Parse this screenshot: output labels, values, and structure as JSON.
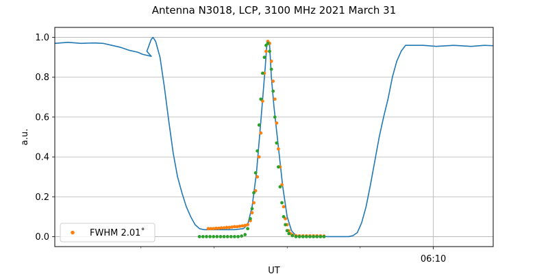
{
  "chart_data": {
    "type": "line",
    "title": "Antenna N3018, LCP, 3100 MHz 2021 March 31",
    "xlabel": "UT",
    "ylabel": "a.u.",
    "xlim": [
      5.735,
      6.235
    ],
    "ylim": [
      -0.05,
      1.05
    ],
    "x_major_ticks": [
      {
        "value": 6.1667,
        "label": "06:10"
      }
    ],
    "x_minor_ticks": [
      5.8333,
      5.9167,
      6.0,
      6.0833,
      6.25
    ],
    "y_ticks": [
      0.0,
      0.2,
      0.4,
      0.6,
      0.8,
      1.0
    ],
    "y_tick_labels": [
      "0.0",
      "0.2",
      "0.4",
      "0.6",
      "0.8",
      "1.0"
    ],
    "grid": true,
    "legend_position": "lower-left",
    "series": [
      {
        "kind": "line",
        "color": "#1f77b4",
        "points": [
          [
            5.735,
            0.97
          ],
          [
            5.75,
            0.975
          ],
          [
            5.765,
            0.97
          ],
          [
            5.78,
            0.972
          ],
          [
            5.79,
            0.97
          ],
          [
            5.8,
            0.96
          ],
          [
            5.81,
            0.95
          ],
          [
            5.82,
            0.935
          ],
          [
            5.83,
            0.925
          ],
          [
            5.835,
            0.915
          ],
          [
            5.84,
            0.91
          ],
          [
            5.845,
            0.905
          ],
          [
            5.84,
            0.93
          ],
          [
            5.845,
            0.99
          ],
          [
            5.847,
            1.0
          ],
          [
            5.85,
            0.98
          ],
          [
            5.855,
            0.9
          ],
          [
            5.86,
            0.75
          ],
          [
            5.865,
            0.58
          ],
          [
            5.87,
            0.42
          ],
          [
            5.875,
            0.3
          ],
          [
            5.88,
            0.22
          ],
          [
            5.885,
            0.15
          ],
          [
            5.89,
            0.1
          ],
          [
            5.895,
            0.06
          ],
          [
            5.9,
            0.04
          ],
          [
            5.905,
            0.035
          ],
          [
            5.92,
            0.035
          ],
          [
            5.94,
            0.035
          ],
          [
            5.95,
            0.04
          ],
          [
            5.955,
            0.06
          ],
          [
            5.96,
            0.15
          ],
          [
            5.965,
            0.32
          ],
          [
            5.97,
            0.58
          ],
          [
            5.975,
            0.85
          ],
          [
            5.977,
            0.975
          ],
          [
            5.98,
            0.96
          ],
          [
            5.982,
            0.8
          ],
          [
            5.985,
            0.65
          ],
          [
            5.99,
            0.45
          ],
          [
            5.995,
            0.25
          ],
          [
            6.0,
            0.1
          ],
          [
            6.005,
            0.03
          ],
          [
            6.01,
            0.005
          ],
          [
            6.02,
            0.0
          ],
          [
            6.04,
            0.0
          ],
          [
            6.06,
            0.0
          ],
          [
            6.07,
            0.0
          ],
          [
            6.075,
            0.005
          ],
          [
            6.08,
            0.02
          ],
          [
            6.085,
            0.07
          ],
          [
            6.09,
            0.15
          ],
          [
            6.095,
            0.26
          ],
          [
            6.1,
            0.38
          ],
          [
            6.105,
            0.5
          ],
          [
            6.11,
            0.6
          ],
          [
            6.115,
            0.69
          ],
          [
            6.12,
            0.8
          ],
          [
            6.125,
            0.88
          ],
          [
            6.13,
            0.93
          ],
          [
            6.135,
            0.96
          ],
          [
            6.14,
            0.96
          ],
          [
            6.155,
            0.96
          ],
          [
            6.17,
            0.955
          ],
          [
            6.19,
            0.96
          ],
          [
            6.21,
            0.955
          ],
          [
            6.225,
            0.96
          ],
          [
            6.235,
            0.958
          ]
        ]
      },
      {
        "kind": "scatter",
        "name": "FWHM 2.01$^\\circ$",
        "label": "FWHM 2.01˚",
        "color": "#ff7f0e",
        "points": [
          [
            5.91,
            0.04
          ],
          [
            5.913,
            0.04
          ],
          [
            5.916,
            0.04
          ],
          [
            5.919,
            0.042
          ],
          [
            5.922,
            0.042
          ],
          [
            5.925,
            0.044
          ],
          [
            5.928,
            0.044
          ],
          [
            5.931,
            0.046
          ],
          [
            5.934,
            0.046
          ],
          [
            5.937,
            0.048
          ],
          [
            5.94,
            0.05
          ],
          [
            5.943,
            0.05
          ],
          [
            5.946,
            0.052
          ],
          [
            5.949,
            0.054
          ],
          [
            5.952,
            0.056
          ],
          [
            5.955,
            0.06
          ],
          [
            5.958,
            0.08
          ],
          [
            5.96,
            0.12
          ],
          [
            5.962,
            0.17
          ],
          [
            5.964,
            0.23
          ],
          [
            5.966,
            0.3
          ],
          [
            5.968,
            0.4
          ],
          [
            5.97,
            0.52
          ],
          [
            5.972,
            0.68
          ],
          [
            5.974,
            0.82
          ],
          [
            5.976,
            0.93
          ],
          [
            5.978,
            0.98
          ],
          [
            5.98,
            0.97
          ],
          [
            5.982,
            0.88
          ],
          [
            5.984,
            0.78
          ],
          [
            5.986,
            0.69
          ],
          [
            5.988,
            0.57
          ],
          [
            5.99,
            0.44
          ],
          [
            5.992,
            0.35
          ],
          [
            5.994,
            0.26
          ],
          [
            5.996,
            0.15
          ],
          [
            5.998,
            0.09
          ],
          [
            6.0,
            0.06
          ],
          [
            6.002,
            0.03
          ],
          [
            6.004,
            0.015
          ],
          [
            6.006,
            0.008
          ],
          [
            6.01,
            0.005
          ],
          [
            6.014,
            0.004
          ],
          [
            6.018,
            0.004
          ],
          [
            6.022,
            0.004
          ],
          [
            6.026,
            0.004
          ],
          [
            6.03,
            0.004
          ],
          [
            6.034,
            0.004
          ],
          [
            6.038,
            0.004
          ],
          [
            6.042,
            0.003
          ]
        ]
      },
      {
        "kind": "scatter",
        "color": "#2ca02c",
        "points": [
          [
            5.9,
            0.0
          ],
          [
            5.904,
            0.0
          ],
          [
            5.908,
            0.0
          ],
          [
            5.912,
            0.0
          ],
          [
            5.916,
            0.0
          ],
          [
            5.92,
            0.0
          ],
          [
            5.924,
            0.0
          ],
          [
            5.928,
            0.0
          ],
          [
            5.932,
            0.0
          ],
          [
            5.936,
            0.0
          ],
          [
            5.94,
            0.0
          ],
          [
            5.944,
            0.0
          ],
          [
            5.948,
            0.003
          ],
          [
            5.952,
            0.01
          ],
          [
            5.955,
            0.04
          ],
          [
            5.958,
            0.09
          ],
          [
            5.96,
            0.14
          ],
          [
            5.962,
            0.22
          ],
          [
            5.964,
            0.32
          ],
          [
            5.966,
            0.43
          ],
          [
            5.968,
            0.56
          ],
          [
            5.97,
            0.69
          ],
          [
            5.972,
            0.82
          ],
          [
            5.974,
            0.9
          ],
          [
            5.976,
            0.96
          ],
          [
            5.978,
            0.97
          ],
          [
            5.98,
            0.93
          ],
          [
            5.982,
            0.84
          ],
          [
            5.984,
            0.73
          ],
          [
            5.986,
            0.6
          ],
          [
            5.988,
            0.47
          ],
          [
            5.99,
            0.35
          ],
          [
            5.992,
            0.25
          ],
          [
            5.994,
            0.17
          ],
          [
            5.996,
            0.1
          ],
          [
            5.998,
            0.06
          ],
          [
            6.0,
            0.03
          ],
          [
            6.002,
            0.015
          ],
          [
            6.006,
            0.005
          ],
          [
            6.01,
            0.0
          ],
          [
            6.014,
            0.0
          ],
          [
            6.018,
            0.0
          ],
          [
            6.022,
            0.0
          ],
          [
            6.026,
            0.0
          ],
          [
            6.03,
            0.0
          ],
          [
            6.034,
            0.0
          ],
          [
            6.038,
            0.0
          ],
          [
            6.042,
            0.0
          ]
        ]
      }
    ]
  }
}
